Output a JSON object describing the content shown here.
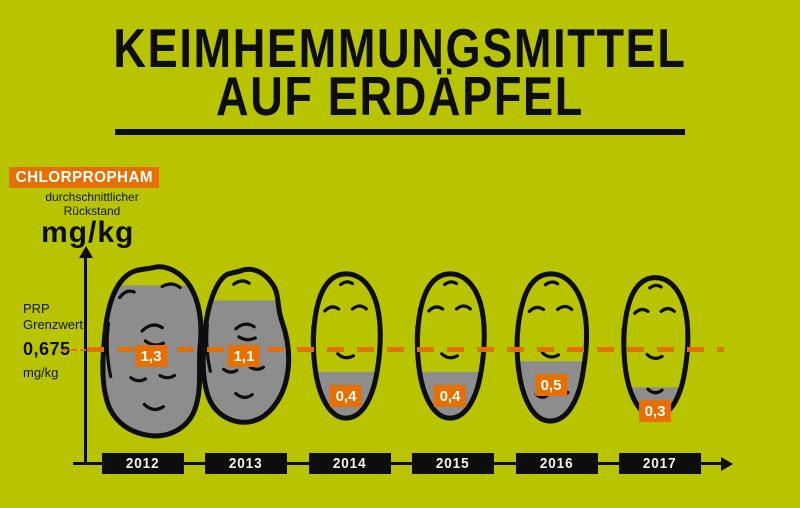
{
  "title": {
    "line1": "KEIMHEMMUNGSMITTEL",
    "line2": "AUF ERDÄPFEL"
  },
  "legend": {
    "substance": "CHLORPROPHAM",
    "description_line1": "durchschnittlicher",
    "description_line2": "Rückstand",
    "unit": "mg/kg"
  },
  "threshold": {
    "label_line1": "PRP",
    "label_line2": "Grenzwert",
    "value_display": "0,675",
    "unit": "mg/kg"
  },
  "colors": {
    "background": "#b8c400",
    "orange": "#e57000",
    "potato_fill_gray": "#8d8d8d",
    "ink": "#0d0d0d",
    "year_text": "#f4f1e8",
    "chip_text": "#ffffff"
  },
  "chart_data": {
    "type": "bar",
    "title": "Keimhemmungsmittel auf Erdäpfel",
    "series_name": "Chlorpropham – durchschnittlicher Rückstand",
    "categories": [
      "2012",
      "2013",
      "2014",
      "2015",
      "2016",
      "2017"
    ],
    "values": [
      1.3,
      1.1,
      0.4,
      0.4,
      0.5,
      0.3
    ],
    "value_labels": [
      "1,3",
      "1,1",
      "0,4",
      "0,4",
      "0,5",
      "0,3"
    ],
    "unit": "mg/kg",
    "ylabel": "mg/kg",
    "threshold": {
      "label": "PRP Grenzwert",
      "value": 0.675,
      "display": "0,675"
    },
    "fill_fractions": [
      0.9,
      0.8,
      0.33,
      0.33,
      0.41,
      0.22
    ],
    "grid": false,
    "legend_position": "top-left"
  }
}
